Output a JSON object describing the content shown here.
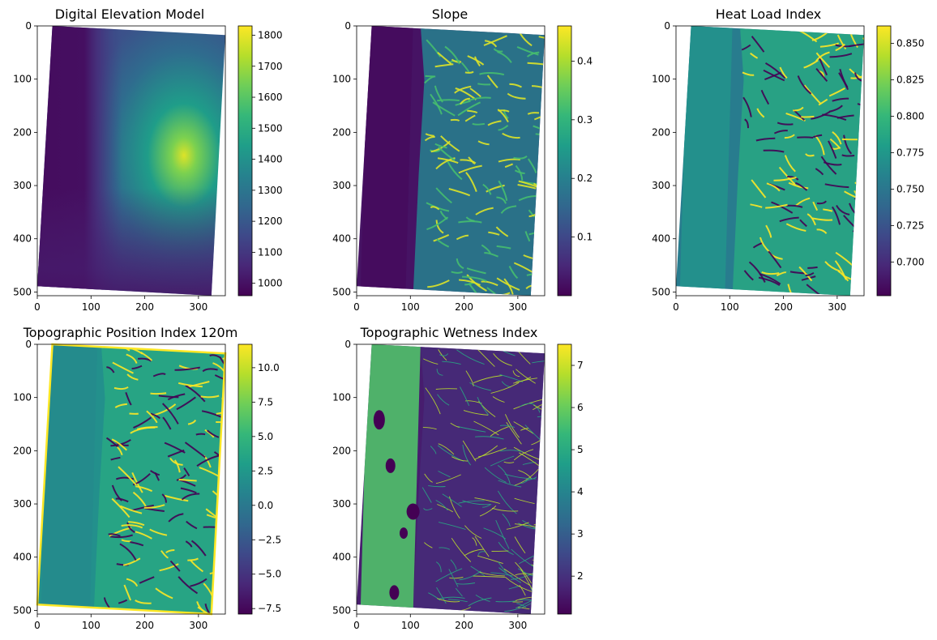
{
  "colors": {
    "viridis": [
      "#440154",
      "#482878",
      "#3e4989",
      "#31688e",
      "#26828e",
      "#1f9e89",
      "#35b779",
      "#6ece58",
      "#b5de2b",
      "#fde725"
    ]
  },
  "chart_data": [
    {
      "type": "heatmap",
      "title": "Digital Elevation Model",
      "xlim": [
        0,
        350
      ],
      "ylim": [
        507,
        0
      ],
      "x_ticks": [
        0,
        100,
        200,
        300
      ],
      "y_ticks": [
        0,
        100,
        200,
        300,
        400,
        500
      ],
      "colorbar": {
        "min": 960,
        "max": 1830,
        "ticks": [
          1000,
          1100,
          1200,
          1300,
          1400,
          1500,
          1600,
          1700,
          1800
        ]
      },
      "raster_outline": [
        [
          28,
          0
        ],
        [
          350,
          17
        ],
        [
          324,
          507
        ],
        [
          0,
          489
        ]
      ],
      "pattern": "smooth"
    },
    {
      "type": "heatmap",
      "title": "Slope",
      "xlim": [
        0,
        350
      ],
      "ylim": [
        507,
        0
      ],
      "x_ticks": [
        0,
        100,
        200,
        300
      ],
      "y_ticks": [
        0,
        100,
        200,
        300,
        400,
        500
      ],
      "colorbar": {
        "min": 0.0,
        "max": 0.46,
        "ticks": [
          0.1,
          0.2,
          0.3,
          0.4
        ]
      },
      "raster_outline": [
        [
          28,
          0
        ],
        [
          350,
          17
        ],
        [
          324,
          507
        ],
        [
          0,
          489
        ]
      ],
      "pattern": "ridges"
    },
    {
      "type": "heatmap",
      "title": "Heat Load Index",
      "xlim": [
        0,
        350
      ],
      "ylim": [
        507,
        0
      ],
      "x_ticks": [
        0,
        100,
        200,
        300
      ],
      "y_ticks": [
        0,
        100,
        200,
        300,
        400,
        500
      ],
      "colorbar": {
        "min": 0.677,
        "max": 0.862,
        "ticks": [
          0.7,
          0.725,
          0.75,
          0.775,
          0.8,
          0.825,
          0.85
        ]
      },
      "raster_outline": [
        [
          28,
          0
        ],
        [
          350,
          17
        ],
        [
          324,
          507
        ],
        [
          0,
          489
        ]
      ],
      "pattern": "aspect"
    },
    {
      "type": "heatmap",
      "title": "Topographic Position Index 120m",
      "xlim": [
        0,
        350
      ],
      "ylim": [
        507,
        0
      ],
      "x_ticks": [
        0,
        100,
        200,
        300
      ],
      "y_ticks": [
        0,
        100,
        200,
        300,
        400,
        500
      ],
      "colorbar": {
        "min": -7.9,
        "max": 11.7,
        "ticks": [
          -7.5,
          -5.0,
          -2.5,
          0.0,
          2.5,
          5.0,
          7.5,
          10.0
        ]
      },
      "raster_outline": [
        [
          28,
          0
        ],
        [
          350,
          17
        ],
        [
          324,
          507
        ],
        [
          0,
          489
        ]
      ],
      "pattern": "valleys"
    },
    {
      "type": "heatmap",
      "title": "Topographic Wetness Index",
      "xlim": [
        0,
        350
      ],
      "ylim": [
        507,
        0
      ],
      "x_ticks": [
        0,
        100,
        200,
        300
      ],
      "y_ticks": [
        0,
        100,
        200,
        300,
        400,
        500
      ],
      "colorbar": {
        "min": 1.1,
        "max": 7.5,
        "ticks": [
          2,
          3,
          4,
          5,
          6,
          7
        ]
      },
      "raster_outline": [
        [
          28,
          0
        ],
        [
          350,
          17
        ],
        [
          324,
          507
        ],
        [
          0,
          489
        ]
      ],
      "pattern": "channels"
    }
  ]
}
